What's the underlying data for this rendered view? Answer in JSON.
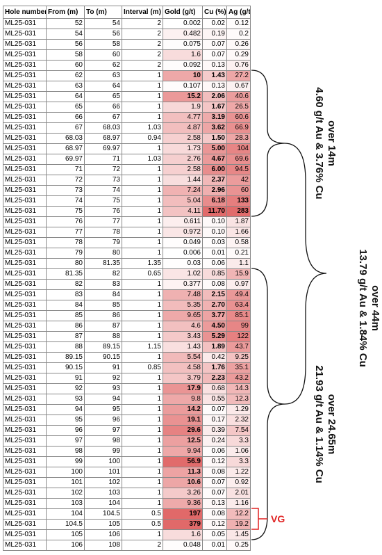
{
  "table": {
    "headers": [
      "Hole number",
      "From (m)",
      "To (m)",
      "Interval (m)",
      "Gold (g/t)",
      "Cu (%)",
      "Ag (g/t)"
    ],
    "rows": [
      [
        "ML25-031",
        "52",
        "54",
        "2",
        "0.002",
        "0.02",
        "0.12"
      ],
      [
        "ML25-031",
        "54",
        "56",
        "2",
        "0.482",
        "0.19",
        "0.2"
      ],
      [
        "ML25-031",
        "56",
        "58",
        "2",
        "0.075",
        "0.07",
        "0.26"
      ],
      [
        "ML25-031",
        "58",
        "60",
        "2",
        "1.6",
        "0.07",
        "0.29"
      ],
      [
        "ML25-031",
        "60",
        "62",
        "2",
        "0.092",
        "0.13",
        "0.76"
      ],
      [
        "ML25-031",
        "62",
        "63",
        "1",
        "10",
        "1.43",
        "27.2"
      ],
      [
        "ML25-031",
        "63",
        "64",
        "1",
        "0.107",
        "0.13",
        "0.67"
      ],
      [
        "ML25-031",
        "64",
        "65",
        "1",
        "15.2",
        "2.06",
        "40.6"
      ],
      [
        "ML25-031",
        "65",
        "66",
        "1",
        "1.9",
        "1.67",
        "26.5"
      ],
      [
        "ML25-031",
        "66",
        "67",
        "1",
        "4.77",
        "3.19",
        "60.6"
      ],
      [
        "ML25-031",
        "67",
        "68.03",
        "1.03",
        "4.87",
        "3.62",
        "66.9"
      ],
      [
        "ML25-031",
        "68.03",
        "68.97",
        "0.94",
        "2.58",
        "1.50",
        "28.3"
      ],
      [
        "ML25-031",
        "68.97",
        "69.97",
        "1",
        "1.73",
        "5.00",
        "104"
      ],
      [
        "ML25-031",
        "69.97",
        "71",
        "1.03",
        "2.76",
        "4.67",
        "69.6"
      ],
      [
        "ML25-031",
        "71",
        "72",
        "1",
        "2.58",
        "6.00",
        "94.5"
      ],
      [
        "ML25-031",
        "72",
        "73",
        "1",
        "1.44",
        "2.37",
        "42"
      ],
      [
        "ML25-031",
        "73",
        "74",
        "1",
        "7.24",
        "2.96",
        "60"
      ],
      [
        "ML25-031",
        "74",
        "75",
        "1",
        "5.04",
        "6.18",
        "133"
      ],
      [
        "ML25-031",
        "75",
        "76",
        "1",
        "4.11",
        "11.70",
        "283"
      ],
      [
        "ML25-031",
        "76",
        "77",
        "1",
        "0.611",
        "0.10",
        "1.87"
      ],
      [
        "ML25-031",
        "77",
        "78",
        "1",
        "0.972",
        "0.10",
        "1.66"
      ],
      [
        "ML25-031",
        "78",
        "79",
        "1",
        "0.049",
        "0.03",
        "0.58"
      ],
      [
        "ML25-031",
        "79",
        "80",
        "1",
        "0.006",
        "0.01",
        "0.21"
      ],
      [
        "ML25-031",
        "80",
        "81.35",
        "1.35",
        "0.03",
        "0.06",
        "1.1"
      ],
      [
        "ML25-031",
        "81.35",
        "82",
        "0.65",
        "1.02",
        "0.85",
        "15.9"
      ],
      [
        "ML25-031",
        "82",
        "83",
        "1",
        "0.377",
        "0.08",
        "0.97"
      ],
      [
        "ML25-031",
        "83",
        "84",
        "1",
        "7.48",
        "2.15",
        "49.4"
      ],
      [
        "ML25-031",
        "84",
        "85",
        "1",
        "5.35",
        "2.70",
        "63.4"
      ],
      [
        "ML25-031",
        "85",
        "86",
        "1",
        "9.65",
        "3.77",
        "85.1"
      ],
      [
        "ML25-031",
        "86",
        "87",
        "1",
        "4.6",
        "4.50",
        "99"
      ],
      [
        "ML25-031",
        "87",
        "88",
        "1",
        "3.43",
        "5.29",
        "122"
      ],
      [
        "ML25-031",
        "88",
        "89.15",
        "1.15",
        "1.43",
        "1.89",
        "43.7"
      ],
      [
        "ML25-031",
        "89.15",
        "90.15",
        "1",
        "5.54",
        "0.42",
        "9.25"
      ],
      [
        "ML25-031",
        "90.15",
        "91",
        "0.85",
        "4.58",
        "1.76",
        "35.1"
      ],
      [
        "ML25-031",
        "91",
        "92",
        "1",
        "3.79",
        "2.23",
        "43.2"
      ],
      [
        "ML25-031",
        "92",
        "93",
        "1",
        "17.9",
        "0.68",
        "14.3"
      ],
      [
        "ML25-031",
        "93",
        "94",
        "1",
        "9.8",
        "0.55",
        "12.3"
      ],
      [
        "ML25-031",
        "94",
        "95",
        "1",
        "14.2",
        "0.07",
        "1.29"
      ],
      [
        "ML25-031",
        "95",
        "96",
        "1",
        "19.1",
        "0.17",
        "2.32"
      ],
      [
        "ML25-031",
        "96",
        "97",
        "1",
        "29.6",
        "0.39",
        "7.54"
      ],
      [
        "ML25-031",
        "97",
        "98",
        "1",
        "12.5",
        "0.24",
        "3.3"
      ],
      [
        "ML25-031",
        "98",
        "99",
        "1",
        "9.94",
        "0.06",
        "1.06"
      ],
      [
        "ML25-031",
        "99",
        "100",
        "1",
        "56.9",
        "0.12",
        "3.3"
      ],
      [
        "ML25-031",
        "100",
        "101",
        "1",
        "11.3",
        "0.08",
        "1.22"
      ],
      [
        "ML25-031",
        "101",
        "102",
        "1",
        "10.6",
        "0.07",
        "0.92"
      ],
      [
        "ML25-031",
        "102",
        "103",
        "1",
        "3.26",
        "0.07",
        "2.01"
      ],
      [
        "ML25-031",
        "103",
        "104",
        "1",
        "9.36",
        "0.13",
        "1.16"
      ],
      [
        "ML25-031",
        "104",
        "104.5",
        "0.5",
        "197",
        "0.08",
        "12.2"
      ],
      [
        "ML25-031",
        "104.5",
        "105",
        "0.5",
        "379",
        "0.12",
        "19.2"
      ],
      [
        "ML25-031",
        "105",
        "106",
        "1",
        "1.6",
        "0.05",
        "1.45"
      ],
      [
        "ML25-031",
        "106",
        "108",
        "2",
        "0.048",
        "0.01",
        "0.25"
      ]
    ]
  },
  "annotations": {
    "intercept_1": [
      "4.60 g/t Au & 3.76% Cu",
      "over 14m"
    ],
    "intercept_2": [
      "13.79 g/t Au & 1.84% Cu",
      "over 44m"
    ],
    "intercept_3": [
      "21.93 g/t Au & 1.14% Cu",
      "over 24.65m"
    ],
    "vg": "VG"
  }
}
